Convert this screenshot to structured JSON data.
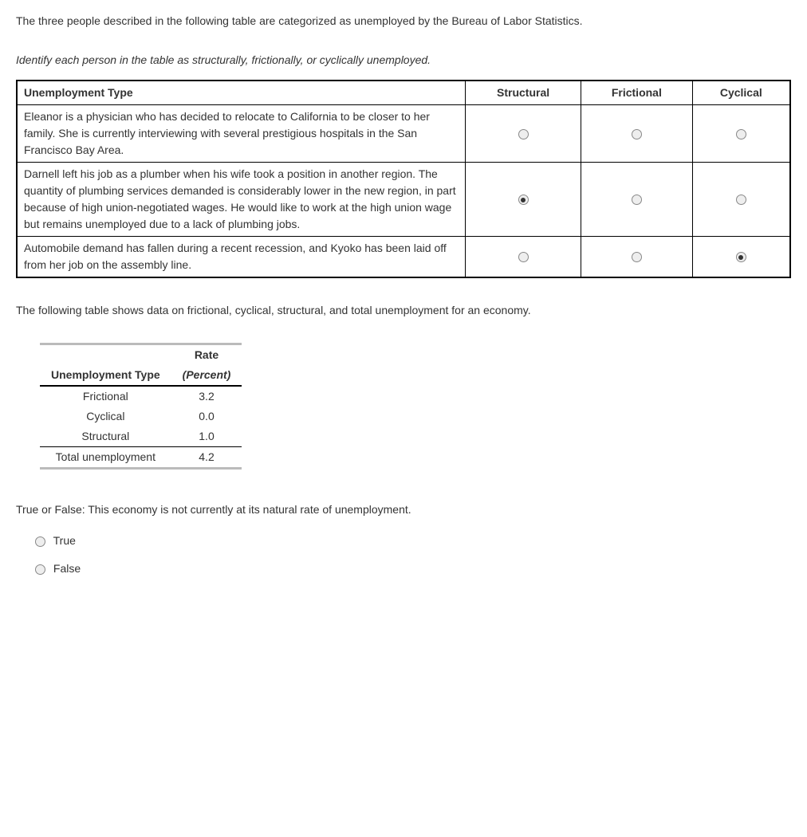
{
  "intro_text": "The three people described in the following table are categorized as unemployed by the Bureau of Labor Statistics.",
  "instructions_text": "Identify each person in the table as structurally, frictionally, or cyclically unemployed.",
  "q1": {
    "headers": {
      "type": "Unemployment Type",
      "structural": "Structural",
      "frictional": "Frictional",
      "cyclical": "Cyclical"
    },
    "rows": [
      {
        "desc": "Eleanor is a physician who has decided to relocate to California to be closer to her family. She is currently interviewing with several prestigious hospitals in the San Francisco Bay Area.",
        "selected": ""
      },
      {
        "desc": "Darnell left his job as a plumber when his wife took a position in another region. The quantity of plumbing services demanded is considerably lower in the new region, in part because of high union-negotiated wages. He would like to work at the high union wage but remains unemployed due to a lack of plumbing jobs.",
        "selected": "structural"
      },
      {
        "desc": "Automobile demand has fallen during a recent recession, and Kyoko has been laid off from her job on the assembly line.",
        "selected": "cyclical"
      }
    ]
  },
  "paragraph2": "The following table shows data on frictional, cyclical, structural, and total unemployment for an economy.",
  "rates": {
    "col_type": "Unemployment Type",
    "col_rate_top": "Rate",
    "col_rate_sub": "(Percent)",
    "rows": [
      {
        "label": "Frictional",
        "value": "3.2"
      },
      {
        "label": "Cyclical",
        "value": "0.0"
      },
      {
        "label": "Structural",
        "value": "1.0"
      }
    ],
    "total": {
      "label": "Total unemployment",
      "value": "4.2"
    }
  },
  "tf": {
    "question": "True or False: This economy is not currently at its natural rate of unemployment.",
    "options": {
      "true": "True",
      "false": "False"
    },
    "selected": ""
  }
}
